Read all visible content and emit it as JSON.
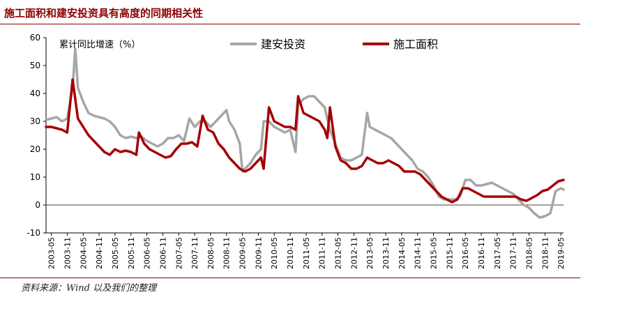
{
  "header": {
    "title": "施工面积和建安投资具有高度的同期相关性"
  },
  "source": "资料来源：Wind 以及我们的整理",
  "chart_data": {
    "type": "line",
    "ylabel": "累计同比增速（%）",
    "ylim": [
      -10,
      60
    ],
    "yticks": [
      -10,
      0,
      10,
      20,
      30,
      40,
      50,
      60
    ],
    "x_tick_labels": [
      "2003-05",
      "2003-11",
      "2004-05",
      "2004-11",
      "2005-05",
      "2005-11",
      "2006-05",
      "2006-11",
      "2007-05",
      "2007-11",
      "2008-05",
      "2008-11",
      "2009-05",
      "2009-11",
      "2010-05",
      "2010-11",
      "2011-05",
      "2011-11",
      "2012-05",
      "2012-11",
      "2013-05",
      "2013-11",
      "2014-05",
      "2014-11",
      "2015-05",
      "2015-11",
      "2016-05",
      "2016-11",
      "2017-05",
      "2017-11",
      "2018-05",
      "2018-11",
      "2019-05"
    ],
    "x_range": [
      "2003-03",
      "2019-06"
    ],
    "legend_position": "top",
    "series": [
      {
        "name": "建安投资",
        "color": "#a6a6a6",
        "points": [
          [
            "2003-03",
            30.5
          ],
          [
            "2003-05",
            31
          ],
          [
            "2003-07",
            31.5
          ],
          [
            "2003-09",
            30
          ],
          [
            "2003-11",
            31
          ],
          [
            "2004-01",
            42
          ],
          [
            "2004-02",
            56
          ],
          [
            "2004-03",
            42
          ],
          [
            "2004-05",
            37
          ],
          [
            "2004-07",
            33
          ],
          [
            "2004-09",
            32
          ],
          [
            "2004-11",
            31.5
          ],
          [
            "2005-01",
            31
          ],
          [
            "2005-03",
            30
          ],
          [
            "2005-05",
            28
          ],
          [
            "2005-07",
            25
          ],
          [
            "2005-09",
            24
          ],
          [
            "2005-11",
            24.5
          ],
          [
            "2006-01",
            24
          ],
          [
            "2006-03",
            24.5
          ],
          [
            "2006-05",
            23
          ],
          [
            "2006-07",
            22
          ],
          [
            "2006-09",
            21
          ],
          [
            "2006-11",
            22
          ],
          [
            "2007-01",
            24
          ],
          [
            "2007-03",
            24
          ],
          [
            "2007-05",
            25
          ],
          [
            "2007-07",
            23
          ],
          [
            "2007-09",
            31
          ],
          [
            "2007-11",
            28
          ],
          [
            "2008-01",
            30
          ],
          [
            "2008-03",
            30
          ],
          [
            "2008-05",
            28
          ],
          [
            "2008-07",
            30
          ],
          [
            "2008-09",
            32
          ],
          [
            "2008-11",
            34
          ],
          [
            "2008-12",
            30
          ],
          [
            "2009-02",
            27
          ],
          [
            "2009-04",
            22
          ],
          [
            "2009-05",
            12
          ],
          [
            "2009-06",
            13
          ],
          [
            "2009-08",
            15
          ],
          [
            "2009-10",
            18
          ],
          [
            "2009-12",
            20
          ],
          [
            "2010-01",
            30
          ],
          [
            "2010-03",
            30
          ],
          [
            "2010-05",
            28
          ],
          [
            "2010-07",
            27
          ],
          [
            "2010-09",
            26
          ],
          [
            "2010-11",
            27
          ],
          [
            "2011-01",
            19
          ],
          [
            "2011-02",
            36
          ],
          [
            "2011-04",
            38
          ],
          [
            "2011-06",
            39
          ],
          [
            "2011-08",
            39
          ],
          [
            "2011-10",
            37
          ],
          [
            "2011-12",
            35
          ],
          [
            "2012-02",
            27
          ],
          [
            "2012-04",
            22
          ],
          [
            "2012-06",
            17
          ],
          [
            "2012-08",
            16
          ],
          [
            "2012-10",
            16
          ],
          [
            "2012-12",
            17
          ],
          [
            "2013-02",
            18
          ],
          [
            "2013-04",
            33
          ],
          [
            "2013-05",
            28
          ],
          [
            "2013-07",
            27
          ],
          [
            "2013-09",
            26
          ],
          [
            "2013-11",
            25
          ],
          [
            "2014-01",
            24
          ],
          [
            "2014-03",
            22
          ],
          [
            "2014-05",
            20
          ],
          [
            "2014-07",
            18
          ],
          [
            "2014-09",
            16
          ],
          [
            "2014-11",
            13
          ],
          [
            "2015-01",
            12
          ],
          [
            "2015-03",
            10
          ],
          [
            "2015-05",
            7
          ],
          [
            "2015-07",
            3
          ],
          [
            "2015-09",
            2
          ],
          [
            "2015-11",
            2
          ],
          [
            "2016-01",
            2
          ],
          [
            "2016-03",
            3
          ],
          [
            "2016-05",
            9
          ],
          [
            "2016-07",
            9
          ],
          [
            "2016-09",
            7
          ],
          [
            "2016-11",
            7
          ],
          [
            "2017-01",
            7.5
          ],
          [
            "2017-03",
            8
          ],
          [
            "2017-05",
            7
          ],
          [
            "2017-07",
            6
          ],
          [
            "2017-09",
            5
          ],
          [
            "2017-11",
            4
          ],
          [
            "2018-01",
            2
          ],
          [
            "2018-03",
            0
          ],
          [
            "2018-05",
            -1
          ],
          [
            "2018-07",
            -3
          ],
          [
            "2018-09",
            -4.5
          ],
          [
            "2018-11",
            -4
          ],
          [
            "2019-01",
            -3
          ],
          [
            "2019-03",
            5
          ],
          [
            "2019-05",
            6
          ],
          [
            "2019-06",
            5.5
          ]
        ]
      },
      {
        "name": "施工面积",
        "color": "#a50000",
        "points": [
          [
            "2003-03",
            28
          ],
          [
            "2003-05",
            28
          ],
          [
            "2003-07",
            27.5
          ],
          [
            "2003-09",
            27
          ],
          [
            "2003-11",
            26
          ],
          [
            "2004-01",
            45
          ],
          [
            "2004-03",
            31
          ],
          [
            "2004-05",
            28
          ],
          [
            "2004-07",
            25
          ],
          [
            "2004-09",
            23
          ],
          [
            "2004-11",
            21
          ],
          [
            "2005-01",
            19
          ],
          [
            "2005-03",
            18
          ],
          [
            "2005-05",
            20
          ],
          [
            "2005-07",
            19
          ],
          [
            "2005-09",
            19.5
          ],
          [
            "2005-11",
            19
          ],
          [
            "2006-01",
            18
          ],
          [
            "2006-02",
            26
          ],
          [
            "2006-04",
            22
          ],
          [
            "2006-06",
            20
          ],
          [
            "2006-08",
            19
          ],
          [
            "2006-10",
            18
          ],
          [
            "2006-12",
            17
          ],
          [
            "2007-02",
            17.5
          ],
          [
            "2007-04",
            20
          ],
          [
            "2007-06",
            22
          ],
          [
            "2007-08",
            22
          ],
          [
            "2007-10",
            22.5
          ],
          [
            "2007-12",
            21
          ],
          [
            "2008-02",
            32
          ],
          [
            "2008-04",
            27
          ],
          [
            "2008-06",
            26
          ],
          [
            "2008-08",
            22
          ],
          [
            "2008-10",
            20
          ],
          [
            "2008-12",
            17
          ],
          [
            "2009-02",
            15
          ],
          [
            "2009-04",
            13
          ],
          [
            "2009-06",
            12
          ],
          [
            "2009-08",
            13
          ],
          [
            "2009-10",
            15
          ],
          [
            "2009-12",
            17
          ],
          [
            "2010-01",
            13
          ],
          [
            "2010-03",
            35
          ],
          [
            "2010-05",
            30
          ],
          [
            "2010-07",
            29
          ],
          [
            "2010-09",
            28
          ],
          [
            "2010-11",
            28
          ],
          [
            "2011-01",
            27
          ],
          [
            "2011-02",
            39
          ],
          [
            "2011-04",
            33
          ],
          [
            "2011-06",
            32
          ],
          [
            "2011-08",
            31
          ],
          [
            "2011-10",
            30
          ],
          [
            "2011-12",
            27
          ],
          [
            "2012-01",
            24
          ],
          [
            "2012-02",
            35
          ],
          [
            "2012-04",
            21
          ],
          [
            "2012-06",
            16
          ],
          [
            "2012-08",
            15
          ],
          [
            "2012-10",
            13
          ],
          [
            "2012-12",
            13
          ],
          [
            "2013-02",
            14
          ],
          [
            "2013-04",
            17
          ],
          [
            "2013-06",
            16
          ],
          [
            "2013-08",
            15
          ],
          [
            "2013-10",
            15
          ],
          [
            "2013-12",
            16
          ],
          [
            "2014-02",
            15
          ],
          [
            "2014-04",
            14
          ],
          [
            "2014-06",
            12
          ],
          [
            "2014-08",
            12
          ],
          [
            "2014-10",
            12
          ],
          [
            "2014-12",
            11
          ],
          [
            "2015-02",
            9
          ],
          [
            "2015-04",
            7
          ],
          [
            "2015-06",
            5
          ],
          [
            "2015-08",
            3
          ],
          [
            "2015-10",
            2
          ],
          [
            "2015-12",
            1
          ],
          [
            "2016-02",
            2
          ],
          [
            "2016-04",
            6
          ],
          [
            "2016-06",
            6
          ],
          [
            "2016-08",
            5
          ],
          [
            "2016-10",
            4
          ],
          [
            "2016-12",
            3
          ],
          [
            "2017-02",
            3
          ],
          [
            "2017-04",
            3
          ],
          [
            "2017-06",
            3
          ],
          [
            "2017-08",
            3
          ],
          [
            "2017-10",
            3
          ],
          [
            "2017-12",
            3
          ],
          [
            "2018-02",
            2
          ],
          [
            "2018-04",
            1.5
          ],
          [
            "2018-06",
            2.5
          ],
          [
            "2018-08",
            3.5
          ],
          [
            "2018-10",
            5
          ],
          [
            "2018-12",
            5.5
          ],
          [
            "2019-02",
            7
          ],
          [
            "2019-04",
            8.5
          ],
          [
            "2019-06",
            9
          ]
        ]
      }
    ]
  }
}
